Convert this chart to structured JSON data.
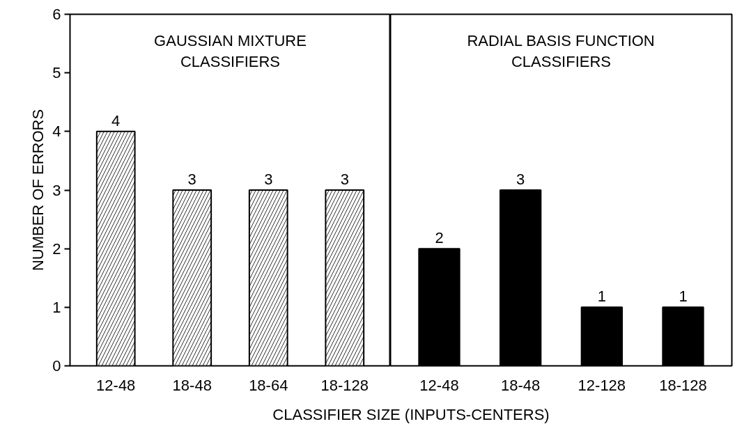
{
  "chart_data": [
    {
      "type": "bar",
      "categories": [
        "12-48",
        "18-48",
        "18-64",
        "18-128"
      ],
      "values": [
        4,
        3,
        3,
        3
      ],
      "color": "#ffffff",
      "ylabel": "NUMBER OF ERRORS",
      "xlabel": "CLASSIFIER SIZE (INPUTS-CENTERS)",
      "annotations": [
        "GAUSSIAN MIXTURE\nCLASSIFIERS"
      ],
      "ylim": [
        0,
        6
      ],
      "yticks": [
        0,
        1,
        2,
        3,
        4,
        5,
        6
      ],
      "data_labels": true
    },
    {
      "type": "bar",
      "categories": [
        "12-48",
        "18-48",
        "12-128",
        "18-128"
      ],
      "values": [
        2,
        3,
        1,
        1
      ],
      "color": "#000000",
      "annotations": [
        "RADIAL BASIS FUNCTION\nCLASSIFIERS"
      ],
      "ylim": [
        0,
        6
      ],
      "tick_labels": "x",
      "data_labels": true
    }
  ]
}
